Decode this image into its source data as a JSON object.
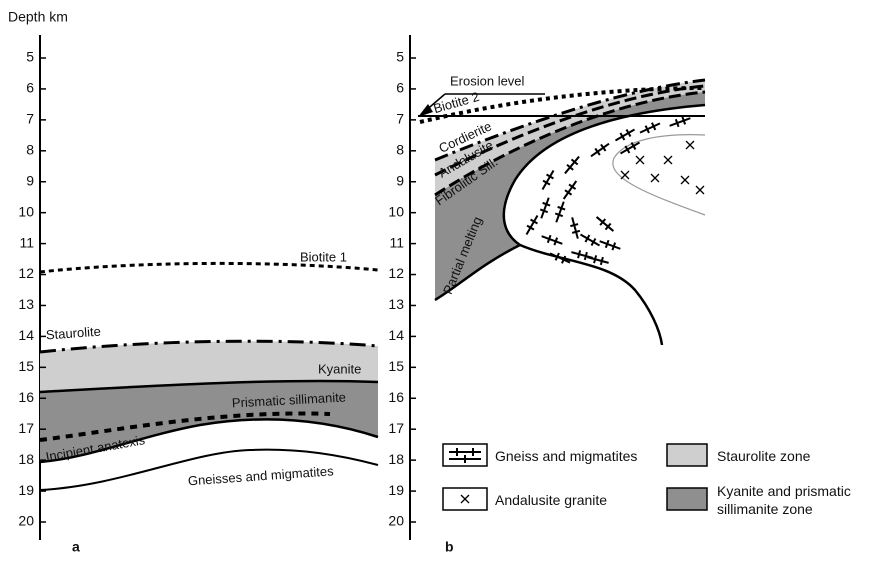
{
  "depth_axis_label": "Depth km",
  "panels": [
    {
      "label": "a",
      "depth_ticks": [
        5,
        6,
        7,
        8,
        9,
        10,
        11,
        12,
        13,
        14,
        15,
        16,
        17,
        18,
        19,
        20
      ],
      "zone_labels": [
        "Biotite 1",
        "Staurolite",
        "Kyanite",
        "Prismatic sillimanite",
        "Incipient anatexis",
        "Gneisses and migmatites"
      ]
    },
    {
      "label": "b",
      "depth_ticks": [
        5,
        6,
        7,
        8,
        9,
        10,
        11,
        12,
        13,
        14,
        15,
        16,
        17,
        18,
        19,
        20
      ],
      "zone_labels": [
        "Erosion level",
        "Biotite 2",
        "Cordierite",
        "Andalusite",
        "Fibrolitic Sill.",
        "Partial melting"
      ]
    }
  ],
  "legend": [
    "Gneiss and migmatites",
    "Andalusite granite",
    "Staurolite zone",
    "Kyanite and prismatic sillimanite zone"
  ]
}
